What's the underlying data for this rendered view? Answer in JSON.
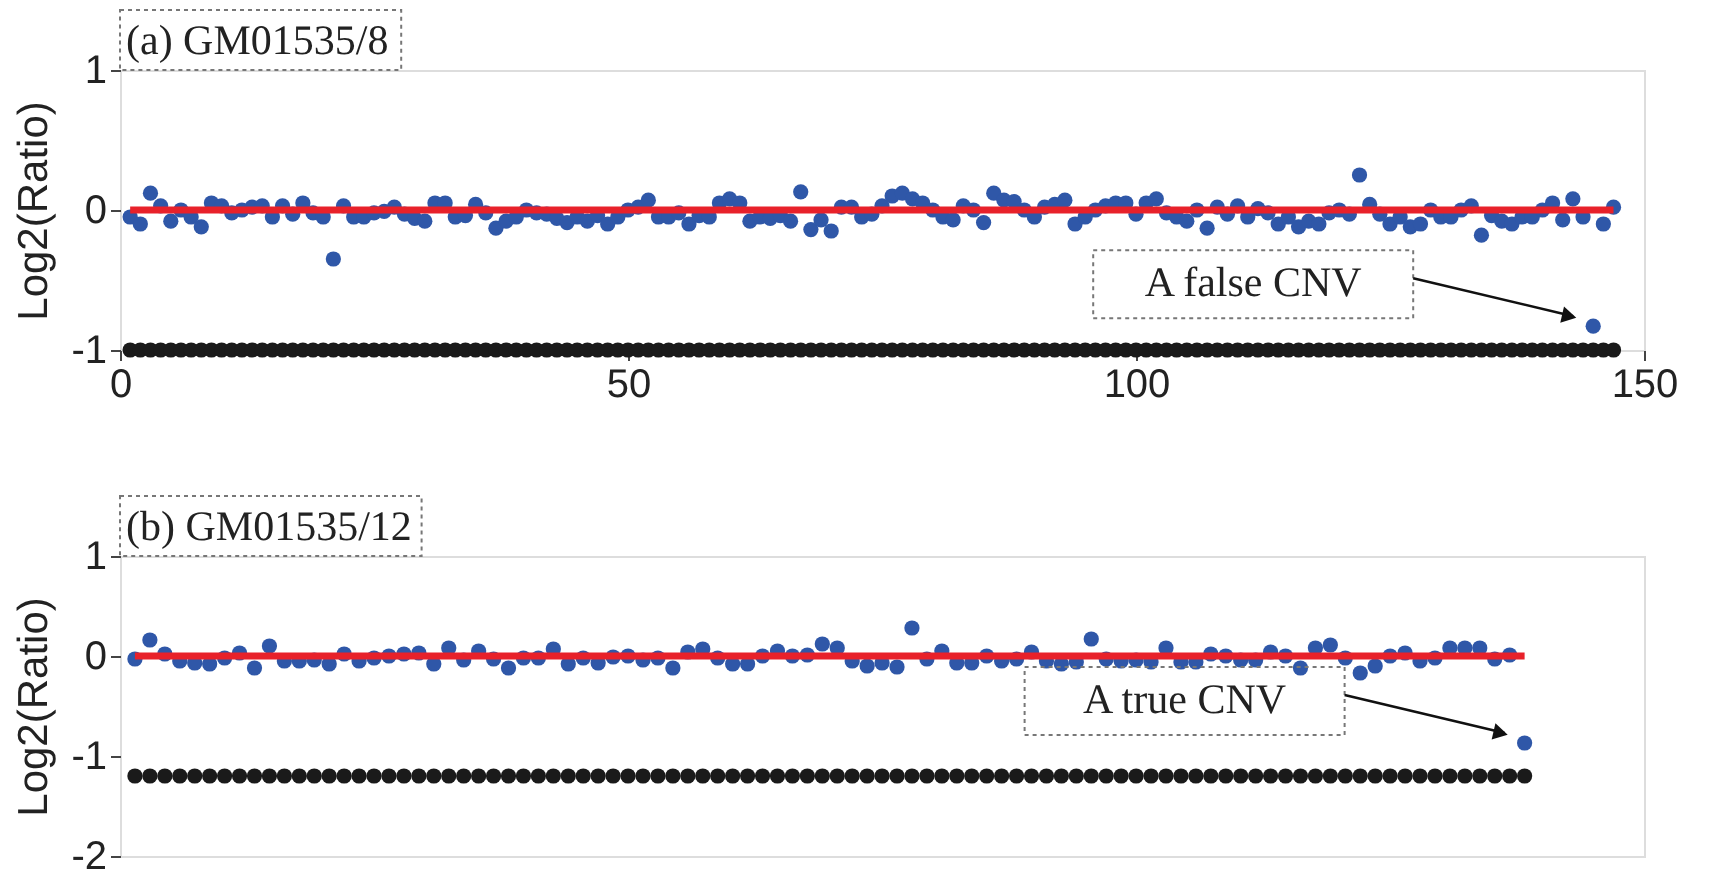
{
  "chart_data": [
    {
      "type": "scatter",
      "title": "(a) GM01535/8",
      "ylabel": "Log2(Ratio)",
      "xlim": [
        0,
        150
      ],
      "xticks": [
        0,
        50,
        100,
        150
      ],
      "ylim": [
        -1,
        1
      ],
      "yticks": [
        -1,
        0,
        1
      ],
      "grid": false,
      "annotations": [
        "A false CNV"
      ],
      "series": [
        {
          "color": "#2f57a8",
          "marker": "circle",
          "x": [
            1,
            2,
            3,
            4,
            5,
            6,
            7,
            8,
            9,
            10,
            11,
            12,
            13,
            14,
            15,
            16,
            17,
            18,
            19,
            20,
            21,
            22,
            23,
            24,
            25,
            26,
            27,
            28,
            29,
            30,
            31,
            32,
            33,
            34,
            35,
            36,
            37,
            38,
            39,
            40,
            41,
            42,
            43,
            44,
            45,
            46,
            47,
            48,
            49,
            50,
            51,
            52,
            53,
            54,
            55,
            56,
            57,
            58,
            59,
            60,
            61,
            62,
            63,
            64,
            65,
            66,
            67,
            68,
            69,
            70,
            71,
            72,
            73,
            74,
            75,
            76,
            77,
            78,
            79,
            80,
            81,
            82,
            83,
            84,
            85,
            86,
            87,
            88,
            89,
            90,
            91,
            92,
            93,
            94,
            95,
            96,
            97,
            98,
            99,
            100,
            101,
            102,
            103,
            104,
            105,
            106,
            107,
            108,
            109,
            110,
            111,
            112,
            113,
            114,
            115,
            116,
            117,
            118,
            119,
            120,
            121,
            122,
            123,
            124,
            125,
            126,
            127,
            128,
            129,
            130,
            131,
            132,
            133,
            134,
            135,
            136,
            137,
            138,
            139,
            140,
            141,
            142,
            143,
            144,
            145,
            146,
            147
          ],
          "values": [
            -0.05,
            -0.1,
            0.12,
            0.03,
            -0.08,
            0.0,
            -0.05,
            -0.12,
            0.05,
            0.03,
            -0.02,
            0.0,
            0.02,
            0.03,
            -0.05,
            0.03,
            -0.03,
            0.05,
            -0.02,
            -0.05,
            -0.35,
            0.03,
            -0.05,
            -0.05,
            -0.02,
            -0.01,
            0.02,
            -0.03,
            -0.06,
            -0.08,
            0.05,
            0.05,
            -0.05,
            -0.04,
            0.04,
            -0.02,
            -0.13,
            -0.08,
            -0.05,
            0.0,
            -0.02,
            -0.03,
            -0.06,
            -0.09,
            -0.05,
            -0.08,
            -0.04,
            -0.1,
            -0.05,
            0.0,
            0.02,
            0.07,
            -0.05,
            -0.05,
            -0.02,
            -0.1,
            -0.04,
            -0.05,
            0.05,
            0.08,
            0.05,
            -0.08,
            -0.05,
            -0.06,
            -0.04,
            -0.08,
            0.13,
            -0.14,
            -0.07,
            -0.15,
            0.02,
            0.02,
            -0.05,
            -0.03,
            0.03,
            0.1,
            0.12,
            0.08,
            0.05,
            0.0,
            -0.05,
            -0.07,
            0.03,
            0.0,
            -0.09,
            0.12,
            0.07,
            0.06,
            0.0,
            -0.05,
            0.02,
            0.04,
            0.07,
            -0.1,
            -0.05,
            0.0,
            0.03,
            0.05,
            0.05,
            -0.03,
            0.05,
            0.08,
            -0.02,
            -0.05,
            -0.08,
            0.0,
            -0.13,
            0.02,
            -0.03,
            0.03,
            -0.05,
            0.01,
            -0.02,
            -0.1,
            -0.05,
            -0.12,
            -0.08,
            -0.1,
            -0.02,
            0.0,
            -0.03,
            0.25,
            0.04,
            -0.03,
            -0.1,
            -0.05,
            -0.12,
            -0.1,
            0.0,
            -0.05,
            -0.05,
            0.0,
            0.03,
            -0.18,
            -0.04,
            -0.08,
            -0.1,
            -0.05,
            -0.05,
            0.0,
            0.05,
            -0.07,
            0.08,
            -0.05,
            -0.83,
            -0.1,
            0.02
          ]
        },
        {
          "color": "#1a1a1a",
          "marker": "circle",
          "x": [
            1,
            2,
            3,
            4,
            5,
            6,
            7,
            8,
            9,
            10,
            11,
            12,
            13,
            14,
            15,
            16,
            17,
            18,
            19,
            20,
            21,
            22,
            23,
            24,
            25,
            26,
            27,
            28,
            29,
            30,
            31,
            32,
            33,
            34,
            35,
            36,
            37,
            38,
            39,
            40,
            41,
            42,
            43,
            44,
            45,
            46,
            47,
            48,
            49,
            50,
            51,
            52,
            53,
            54,
            55,
            56,
            57,
            58,
            59,
            60,
            61,
            62,
            63,
            64,
            65,
            66,
            67,
            68,
            69,
            70,
            71,
            72,
            73,
            74,
            75,
            76,
            77,
            78,
            79,
            80,
            81,
            82,
            83,
            84,
            85,
            86,
            87,
            88,
            89,
            90,
            91,
            92,
            93,
            94,
            95,
            96,
            97,
            98,
            99,
            100,
            101,
            102,
            103,
            104,
            105,
            106,
            107,
            108,
            109,
            110,
            111,
            112,
            113,
            114,
            115,
            116,
            117,
            118,
            119,
            120,
            121,
            122,
            123,
            124,
            125,
            126,
            127,
            128,
            129,
            130,
            131,
            132,
            133,
            134,
            135,
            136,
            137,
            138,
            139,
            140,
            141,
            142,
            143,
            144,
            145,
            146,
            147
          ],
          "values": [
            -1,
            -1,
            -1,
            -1,
            -1,
            -1,
            -1,
            -1,
            -1,
            -1,
            -1,
            -1,
            -1,
            -1,
            -1,
            -1,
            -1,
            -1,
            -1,
            -1,
            -1,
            -1,
            -1,
            -1,
            -1,
            -1,
            -1,
            -1,
            -1,
            -1,
            -1,
            -1,
            -1,
            -1,
            -1,
            -1,
            -1,
            -1,
            -1,
            -1,
            -1,
            -1,
            -1,
            -1,
            -1,
            -1,
            -1,
            -1,
            -1,
            -1,
            -1,
            -1,
            -1,
            -1,
            -1,
            -1,
            -1,
            -1,
            -1,
            -1,
            -1,
            -1,
            -1,
            -1,
            -1,
            -1,
            -1,
            -1,
            -1,
            -1,
            -1,
            -1,
            -1,
            -1,
            -1,
            -1,
            -1,
            -1,
            -1,
            -1,
            -1,
            -1,
            -1,
            -1,
            -1,
            -1,
            -1,
            -1,
            -1,
            -1,
            -1,
            -1,
            -1,
            -1,
            -1,
            -1,
            -1,
            -1,
            -1,
            -1,
            -1,
            -1,
            -1,
            -1,
            -1,
            -1,
            -1,
            -1,
            -1,
            -1,
            -1,
            -1,
            -1,
            -1,
            -1,
            -1,
            -1,
            -1,
            -1,
            -1,
            -1,
            -1,
            -1,
            -1,
            -1,
            -1,
            -1,
            -1,
            -1,
            -1,
            -1,
            -1,
            -1,
            -1,
            -1,
            -1,
            -1,
            -1,
            -1,
            -1,
            -1,
            -1,
            -1,
            -1,
            -1,
            -1,
            -1
          ]
        },
        {
          "type": "line",
          "color": "#e8212a",
          "x": [
            1,
            147
          ],
          "values": [
            0,
            0
          ]
        }
      ]
    },
    {
      "type": "scatter",
      "title": "(b) GM01535/12",
      "ylabel": "Log2(Ratio)",
      "categories": [
        null,
        null,
        null,
        null,
        null,
        null,
        null,
        null,
        null,
        null,
        null,
        null,
        null,
        null,
        null,
        null,
        null,
        null,
        null,
        null,
        null,
        null,
        null,
        null,
        null,
        null,
        null,
        null,
        null,
        null,
        null,
        null,
        null,
        null,
        null,
        null,
        null,
        null,
        null,
        null,
        null,
        null,
        null,
        null,
        null,
        null,
        null,
        null,
        null,
        null,
        null,
        null,
        null,
        null,
        null,
        null,
        null,
        null,
        null,
        null,
        null,
        null,
        null,
        null,
        null,
        null,
        null,
        null,
        null,
        null,
        null,
        null,
        null,
        null,
        null,
        null,
        null,
        null,
        null,
        null,
        null,
        null,
        null,
        null,
        null,
        null,
        null,
        null,
        null,
        null,
        null,
        null,
        null,
        null
      ],
      "ylim": [
        -2,
        1
      ],
      "yticks": [
        -2,
        -1,
        0,
        1
      ],
      "grid": false,
      "tick_labels": "y",
      "annotations": [
        "A true CNV"
      ],
      "series": [
        {
          "color": "#2f57a8",
          "marker": "circle",
          "values": [
            -0.03,
            0.16,
            0.02,
            -0.05,
            -0.07,
            -0.08,
            -0.02,
            0.03,
            -0.12,
            0.1,
            -0.05,
            -0.05,
            -0.04,
            -0.08,
            0.02,
            -0.05,
            -0.02,
            0.0,
            0.02,
            0.03,
            -0.08,
            0.08,
            -0.04,
            0.05,
            -0.03,
            -0.12,
            -0.02,
            -0.02,
            0.07,
            -0.08,
            -0.02,
            -0.07,
            -0.01,
            0.0,
            -0.04,
            -0.02,
            -0.12,
            0.04,
            0.07,
            -0.02,
            -0.08,
            -0.08,
            0.0,
            0.05,
            0.0,
            0.01,
            0.12,
            0.08,
            -0.05,
            -0.1,
            -0.07,
            -0.11,
            0.28,
            -0.03,
            0.05,
            -0.07,
            -0.07,
            0.0,
            -0.05,
            -0.03,
            0.04,
            -0.05,
            -0.08,
            -0.06,
            0.17,
            -0.03,
            -0.05,
            -0.04,
            -0.06,
            0.08,
            -0.06,
            -0.06,
            0.02,
            0.0,
            -0.04,
            -0.04,
            0.04,
            0.0,
            -0.12,
            0.08,
            0.11,
            -0.02,
            -0.17,
            -0.1,
            0.0,
            0.03,
            -0.05,
            -0.02,
            0.08,
            0.08,
            0.08,
            -0.03,
            0.01,
            -0.87
          ]
        },
        {
          "color": "#1a1a1a",
          "marker": "circle",
          "values": [
            -1.2,
            -1.2,
            -1.2,
            -1.2,
            -1.2,
            -1.2,
            -1.2,
            -1.2,
            -1.2,
            -1.2,
            -1.2,
            -1.2,
            -1.2,
            -1.2,
            -1.2,
            -1.2,
            -1.2,
            -1.2,
            -1.2,
            -1.2,
            -1.2,
            -1.2,
            -1.2,
            -1.2,
            -1.2,
            -1.2,
            -1.2,
            -1.2,
            -1.2,
            -1.2,
            -1.2,
            -1.2,
            -1.2,
            -1.2,
            -1.2,
            -1.2,
            -1.2,
            -1.2,
            -1.2,
            -1.2,
            -1.2,
            -1.2,
            -1.2,
            -1.2,
            -1.2,
            -1.2,
            -1.2,
            -1.2,
            -1.2,
            -1.2,
            -1.2,
            -1.2,
            -1.2,
            -1.2,
            -1.2,
            -1.2,
            -1.2,
            -1.2,
            -1.2,
            -1.2,
            -1.2,
            -1.2,
            -1.2,
            -1.2,
            -1.2,
            -1.2,
            -1.2,
            -1.2,
            -1.2,
            -1.2,
            -1.2,
            -1.2,
            -1.2,
            -1.2,
            -1.2,
            -1.2,
            -1.2,
            -1.2,
            -1.2,
            -1.2,
            -1.2,
            -1.2,
            -1.2,
            -1.2,
            -1.2,
            -1.2,
            -1.2,
            -1.2,
            -1.2,
            -1.2,
            -1.2,
            -1.2,
            -1.2,
            -1.2
          ]
        },
        {
          "type": "line",
          "color": "#e8212a",
          "values": [
            0,
            0,
            0,
            0,
            0,
            0,
            0,
            0,
            0,
            0,
            0,
            0,
            0,
            0,
            0,
            0,
            0,
            0,
            0,
            0,
            0,
            0,
            0,
            0,
            0,
            0,
            0,
            0,
            0,
            0,
            0,
            0,
            0,
            0,
            0,
            0,
            0,
            0,
            0,
            0,
            0,
            0,
            0,
            0,
            0,
            0,
            0,
            0,
            0,
            0,
            0,
            0,
            0,
            0,
            0,
            0,
            0,
            0,
            0,
            0,
            0,
            0,
            0,
            0,
            0,
            0,
            0,
            0,
            0,
            0,
            0,
            0,
            0,
            0,
            0,
            0,
            0,
            0,
            0,
            0,
            0,
            0,
            0,
            0,
            0,
            0,
            0,
            0,
            0,
            0,
            0,
            0,
            0,
            0
          ]
        }
      ]
    }
  ]
}
